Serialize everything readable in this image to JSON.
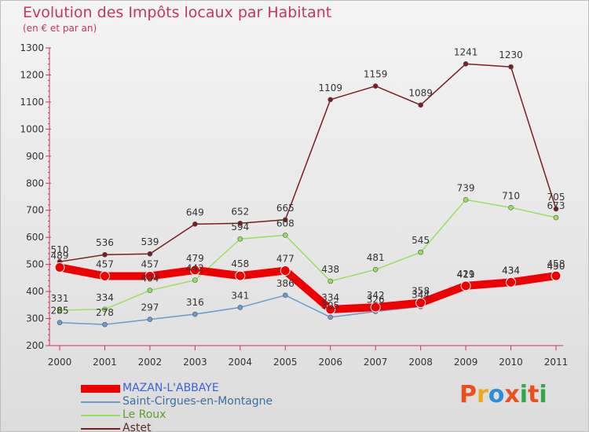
{
  "title": "Evolution des Impôts locaux par Habitant",
  "subtitle": "(en € et par an)",
  "logo": {
    "text": "Proxiti",
    "colors": [
      "#e8501e",
      "#f2a81d",
      "#2a8fd6",
      "#e8501e",
      "#2ea84a",
      "#e8501e",
      "#2ea84a"
    ]
  },
  "chart_data": {
    "type": "line",
    "title": "Evolution des Impôts locaux par Habitant",
    "subtitle": "(en € et par an)",
    "xlabel": "",
    "ylabel": "",
    "ylim": [
      200,
      1300
    ],
    "yticks": [
      200,
      300,
      400,
      500,
      600,
      700,
      800,
      900,
      1000,
      1100,
      1200,
      1300
    ],
    "grid": false,
    "legend_position": "bottom-left",
    "x": [
      "2000",
      "2001",
      "2002",
      "2003",
      "2004",
      "2005",
      "2006",
      "2007",
      "2008",
      "2009",
      "2010",
      "2011"
    ],
    "series": [
      {
        "name": "Astet",
        "color": "#7b1c22",
        "values": [
          510,
          536,
          539,
          649,
          652,
          665,
          1109,
          1159,
          1089,
          1241,
          1230,
          705
        ]
      },
      {
        "name": "Le Roux",
        "color": "#98e060",
        "values": [
          331,
          334,
          404,
          442,
          594,
          608,
          438,
          481,
          545,
          739,
          710,
          673
        ]
      },
      {
        "name": "Saint-Cirgues-en-Montagne",
        "color": "#6a9ccd",
        "values": [
          285,
          278,
          297,
          316,
          341,
          386,
          305,
          326,
          344,
          419,
          434,
          450
        ]
      },
      {
        "name": "MAZAN-L'ABBAYE",
        "color": "#ee0000",
        "values": [
          489,
          457,
          457,
          479,
          458,
          477,
          334,
          342,
          358,
          421,
          434,
          458
        ]
      }
    ]
  }
}
